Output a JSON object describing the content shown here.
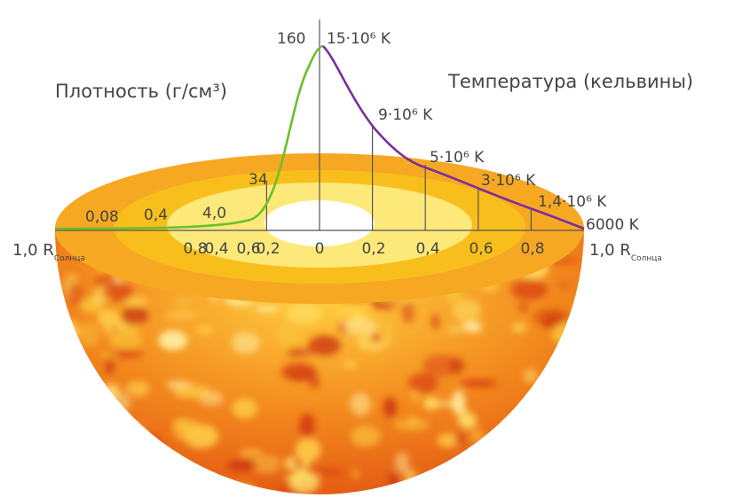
{
  "titles": {
    "density": "Плотность (г/см³)",
    "temperature": "Температура (кельвины)"
  },
  "axis": {
    "left_end": "1,0 R",
    "right_end": "1,0 R",
    "end_subscript": "Солнца",
    "left_ticks": [
      "0,8",
      "0,6",
      "0,4",
      "0,2"
    ],
    "center_tick": "0",
    "right_ticks": [
      "0,2",
      "0,4",
      "0,6",
      "0,8"
    ]
  },
  "chart_data": {
    "type": "line",
    "x_range": [
      0,
      1.0
    ],
    "series": [
      {
        "name": "Плотность (г/см³)",
        "side": "left",
        "color": "#6cbf2a",
        "x": [
          0,
          0.2,
          0.4,
          0.6,
          0.8,
          1.0
        ],
        "labels": [
          "160",
          "34",
          "4,0",
          "0,4",
          "0,08",
          ""
        ]
      },
      {
        "name": "Температура (кельвины)",
        "side": "right",
        "color": "#7b2d9b",
        "x": [
          0,
          0.2,
          0.4,
          0.6,
          0.8,
          1.0
        ],
        "labels": [
          "15·10⁶ K",
          "9·10⁶ K",
          "5·10⁶ K",
          "3·10⁶ K",
          "1,4·10⁶ K",
          "6000 K"
        ]
      }
    ]
  },
  "colors": {
    "corona": "#f6a823",
    "convective_zone": "#f8bf1c",
    "radiative_zone": "#fde97a",
    "core": "#ffffff",
    "surface_dark": "#d63a10",
    "surface_light": "#ffe36a"
  }
}
